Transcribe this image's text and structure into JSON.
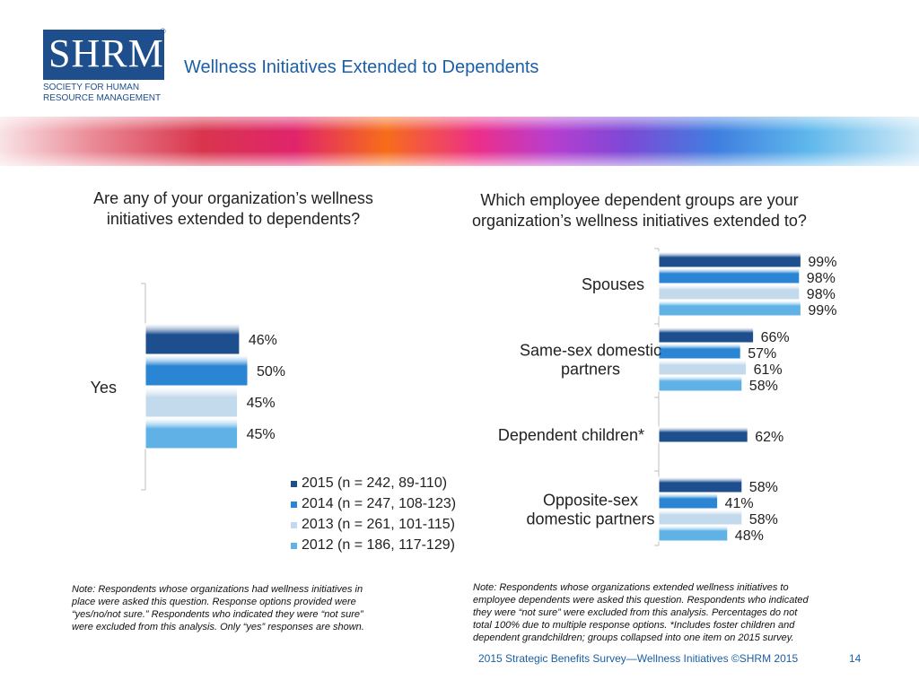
{
  "header": {
    "logo_text": "SHRM",
    "logo_registered": "®",
    "logo_subtitle_line1": "SOCIETY FOR HUMAN",
    "logo_subtitle_line2": "RESOURCE MANAGEMENT",
    "title": "Wellness Initiatives Extended to Dependents"
  },
  "colors": {
    "title": "#1b5fa5",
    "s2015": "#1d4f8f",
    "s2014": "#2a86d4",
    "s2013": "#c3d9ec",
    "s2012": "#5fb1e6"
  },
  "left": {
    "question": [
      "Are any of your organization’s wellness",
      "initiatives extended to dependents?"
    ],
    "note": [
      "Note: Respondents whose organizations had wellness initiatives in",
      "place were asked this question. Response options provided were",
      "“yes/no/not sure.” Respondents who indicated they were “not sure”",
      "were excluded from this analysis. Only “yes” responses are shown."
    ]
  },
  "right": {
    "question": [
      "Which employee dependent groups are your",
      "organization’s wellness initiatives extended to?"
    ],
    "note": [
      "Note: Respondents whose organizations extended wellness initiatives to",
      "employee dependents were asked this question. Respondents who indicated",
      "they were “not sure” were excluded from this analysis. Percentages do not",
      "total 100% due to multiple response options. *Includes foster children and",
      "dependent grandchildren; groups collapsed into one item on 2015 survey."
    ]
  },
  "footer": {
    "text": "2015 Strategic Benefits Survey—Wellness Initiatives ©SHRM 2015",
    "page": "14"
  },
  "chart_data": [
    {
      "type": "bar",
      "orientation": "horizontal",
      "categories": [
        "Yes"
      ],
      "series": [
        {
          "name": "2015 (n = 242, 89-110)",
          "values": [
            46
          ]
        },
        {
          "name": "2014 (n = 247, 108-123)",
          "values": [
            50
          ]
        },
        {
          "name": "2013 (n = 261, 101-115)",
          "values": [
            45
          ]
        },
        {
          "name": "2012 (n = 186, 117-129)",
          "values": [
            45
          ]
        }
      ],
      "value_suffix": "%",
      "legend_position": "bottom",
      "xlim": [
        0,
        100
      ]
    },
    {
      "type": "bar",
      "orientation": "horizontal",
      "categories": [
        [
          "Spouses"
        ],
        [
          "Same-sex domestic",
          "partners"
        ],
        [
          "Dependent children*"
        ],
        [
          "Opposite-sex",
          "domestic partners"
        ]
      ],
      "series": [
        {
          "name": "2015 (n = 242, 89-110)",
          "values": [
            99,
            66,
            62,
            58
          ]
        },
        {
          "name": "2014 (n = 247, 108-123)",
          "values": [
            98,
            57,
            null,
            41
          ]
        },
        {
          "name": "2013 (n = 261, 101-115)",
          "values": [
            98,
            61,
            null,
            58
          ]
        },
        {
          "name": "2012 (n = 186, 117-129)",
          "values": [
            99,
            58,
            null,
            48
          ]
        }
      ],
      "value_suffix": "%",
      "xlim": [
        0,
        100
      ]
    }
  ]
}
